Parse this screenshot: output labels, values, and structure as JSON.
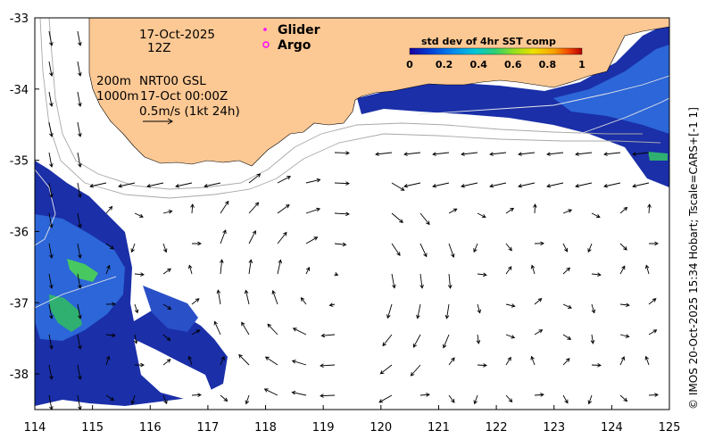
{
  "chart_data": {
    "type": "map",
    "title": "std dev of 4hr SST comp",
    "x_ticks": [
      "114",
      "115",
      "116",
      "117",
      "118",
      "119",
      "120",
      "121",
      "122",
      "123",
      "124",
      "125"
    ],
    "y_ticks": [
      "-33",
      "-34",
      "-35",
      "-36",
      "-37",
      "-38"
    ],
    "xlim": [
      114,
      125
    ],
    "ylim": [
      -38.5,
      -33
    ],
    "colorbar": {
      "title": "std dev of 4hr SST comp",
      "ticks": [
        "0",
        "0.2",
        "0.4",
        "0.6",
        "0.8",
        "1"
      ],
      "range": [
        0,
        1
      ],
      "colors": [
        "#1a00a0",
        "#0040d8",
        "#0088f0",
        "#00c8d8",
        "#30d070",
        "#90e020",
        "#f0e000",
        "#f8a000",
        "#f04000",
        "#b00000"
      ]
    },
    "legend": [
      {
        "label": "Glider",
        "marker": "dot",
        "color": "#ff00ff"
      },
      {
        "label": "Argo",
        "marker": "circle",
        "color": "#ff00ff"
      }
    ],
    "annotations": {
      "date": "17-Oct-2025",
      "time": "12Z",
      "depth_200": "200m",
      "depth_1000": "1000m",
      "product": "NRT00 GSL",
      "analysis_time": "17-Oct 00:00Z",
      "vector_scale": "0.5m/s (1kt 24h)"
    },
    "credit": "© IMOS 20-Oct-2025 15:34 Hobart; Tscale=CARS+[-1 1]"
  },
  "colors": {
    "land": "#fcc894",
    "ocean": "#ffffff",
    "sst_low": "#1010a0",
    "sst_mid": "#2060e0",
    "sst_high": "#30c060",
    "isobath": "#a0a0a0",
    "frame": "#000000"
  }
}
